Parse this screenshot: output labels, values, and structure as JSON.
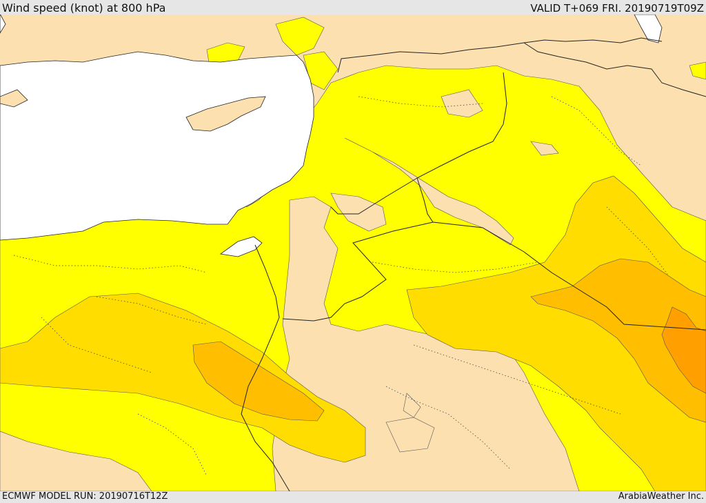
{
  "header": {
    "title": "Wind speed (knot) at 800 hPa",
    "valid": "VALID T+069 FRI. 20190719T09Z"
  },
  "footer": {
    "model_run": "ECMWF MODEL RUN: 20190716T12Z",
    "credit": "ArabiaWeather Inc."
  },
  "colors": {
    "sea": "#ffffff",
    "band_low": "#fde0b0",
    "band_mid": "#ffff00",
    "band_high": "#ffdd00",
    "band_higher": "#ffbe00",
    "band_peak": "#ffa000",
    "border": "#222222"
  }
}
